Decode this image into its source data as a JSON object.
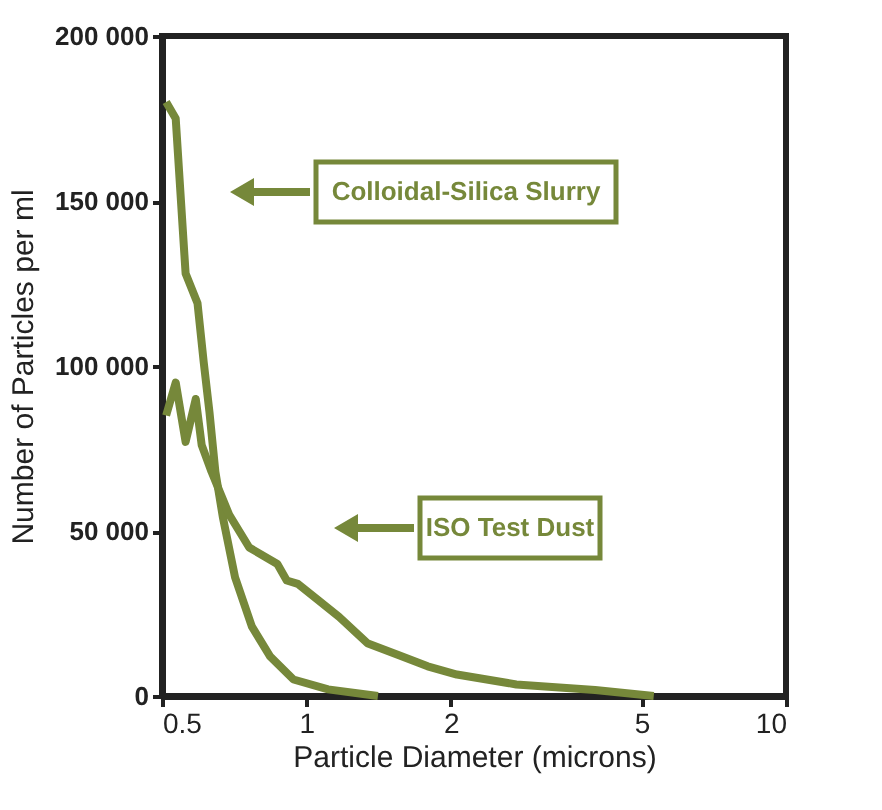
{
  "chart_data": {
    "type": "line",
    "xlabel": "Particle Diameter (microns)",
    "ylabel": "Number of Particles per ml",
    "log": "x",
    "xlim": [
      0.5,
      10
    ],
    "xticks": [
      0.5,
      1,
      2,
      5,
      10
    ],
    "ylim": [
      0,
      200000
    ],
    "yticks": [
      {
        "value": 0,
        "label": "0"
      },
      {
        "value": 50000,
        "label": "50 000"
      },
      {
        "value": 100000,
        "label": "100 000"
      },
      {
        "value": 150000,
        "label": "150 000"
      },
      {
        "value": 200000,
        "label": "200 000"
      }
    ],
    "grid": false,
    "legend": "top left",
    "marker": "none",
    "line_style": "solid",
    "series": [
      {
        "name": "Colloidal-Silica Slurry",
        "color": "#76883a",
        "x": [
          0.51,
          0.534,
          0.56,
          0.593,
          0.611,
          0.628,
          0.646,
          0.67,
          0.71,
          0.77,
          0.84,
          0.94,
          1.11,
          1.41
        ],
        "values": [
          180000,
          175000,
          128000,
          119000,
          101000,
          86000,
          68000,
          54000,
          36000,
          21000,
          12000,
          5000,
          2000,
          0
        ]
      },
      {
        "name": "ISO Test Dust",
        "color": "#76883a",
        "x": [
          0.51,
          0.534,
          0.56,
          0.588,
          0.605,
          0.634,
          0.69,
          0.76,
          0.87,
          0.91,
          0.96,
          1.06,
          1.17,
          1.34,
          1.55,
          1.79,
          2.06,
          2.74,
          4.0,
          5.3
        ],
        "values": [
          85000,
          95000,
          77000,
          90000,
          76000,
          68000,
          55000,
          45000,
          40000,
          35000,
          34000,
          29000,
          24000,
          16000,
          12500,
          9000,
          6500,
          3500,
          1800,
          0
        ]
      }
    ]
  }
}
